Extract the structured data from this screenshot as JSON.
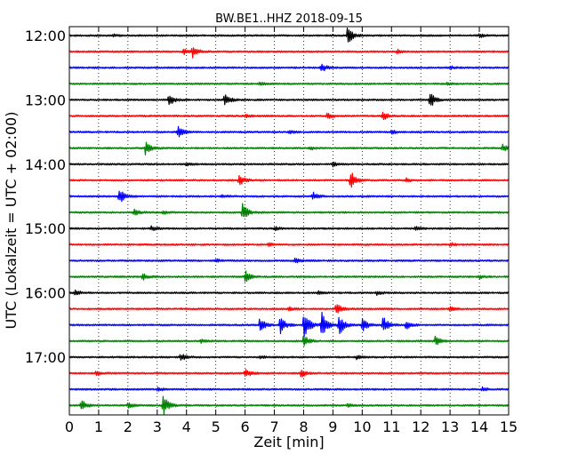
{
  "chart_data": {
    "type": "line",
    "title": "BW.BE1..HHZ 2018-09-15",
    "xlabel": "Zeit  [min]",
    "ylabel": "UTC (Lokalzeit = UTC + 02:00)",
    "xlim": [
      0,
      15
    ],
    "x_ticks": [
      0,
      1,
      2,
      3,
      4,
      5,
      6,
      7,
      8,
      9,
      10,
      11,
      12,
      13,
      14,
      15
    ],
    "x_tick_labels": [
      "0",
      "1",
      "2",
      "3",
      "4",
      "5",
      "6",
      "7",
      "8",
      "9",
      "10",
      "11",
      "12",
      "13",
      "14",
      "15"
    ],
    "y_tick_labels": [
      "12:00",
      "13:00",
      "14:00",
      "15:00",
      "16:00",
      "17:00"
    ],
    "y_tick_trace_index": [
      0,
      4,
      8,
      12,
      16,
      20
    ],
    "grid": "vertical dotted",
    "trace_colors": [
      "#000000",
      "#ff0000",
      "#0000ff",
      "#008000"
    ],
    "traces": [
      {
        "start": "12:00",
        "color": "#000000",
        "events": [
          {
            "t": 9.5,
            "amp": 11
          },
          {
            "t": 14.0,
            "amp": 2
          },
          {
            "t": 1.5,
            "amp": 1.5
          }
        ]
      },
      {
        "start": "12:15",
        "color": "#ff0000",
        "events": [
          {
            "t": 4.2,
            "amp": 7
          },
          {
            "t": 3.9,
            "amp": 4
          },
          {
            "t": 11.2,
            "amp": 2
          }
        ]
      },
      {
        "start": "12:30",
        "color": "#0000ff",
        "events": [
          {
            "t": 8.6,
            "amp": 6
          },
          {
            "t": 13.0,
            "amp": 2
          }
        ]
      },
      {
        "start": "12:45",
        "color": "#008000",
        "events": [
          {
            "t": 12.9,
            "amp": 1.5
          },
          {
            "t": 6.5,
            "amp": 1.5
          }
        ]
      },
      {
        "start": "13:00",
        "color": "#000000",
        "events": [
          {
            "t": 3.4,
            "amp": 7
          },
          {
            "t": 5.3,
            "amp": 8
          },
          {
            "t": 12.3,
            "amp": 11
          }
        ]
      },
      {
        "start": "13:15",
        "color": "#ff0000",
        "events": [
          {
            "t": 8.8,
            "amp": 4
          },
          {
            "t": 10.7,
            "amp": 5
          },
          {
            "t": 6.0,
            "amp": 2
          }
        ]
      },
      {
        "start": "13:30",
        "color": "#0000ff",
        "events": [
          {
            "t": 3.7,
            "amp": 7
          },
          {
            "t": 7.5,
            "amp": 2
          },
          {
            "t": 11.0,
            "amp": 2
          }
        ]
      },
      {
        "start": "13:45",
        "color": "#008000",
        "events": [
          {
            "t": 2.6,
            "amp": 8
          },
          {
            "t": 14.8,
            "amp": 4
          },
          {
            "t": 8.2,
            "amp": 2
          }
        ]
      },
      {
        "start": "14:00",
        "color": "#000000",
        "events": [
          {
            "t": 4.0,
            "amp": 2
          },
          {
            "t": 9.0,
            "amp": 2
          }
        ]
      },
      {
        "start": "14:15",
        "color": "#ff0000",
        "events": [
          {
            "t": 5.8,
            "amp": 7
          },
          {
            "t": 9.6,
            "amp": 11
          },
          {
            "t": 11.5,
            "amp": 2
          }
        ]
      },
      {
        "start": "14:30",
        "color": "#0000ff",
        "events": [
          {
            "t": 1.7,
            "amp": 9
          },
          {
            "t": 8.3,
            "amp": 5
          },
          {
            "t": 5.2,
            "amp": 2
          }
        ]
      },
      {
        "start": "14:45",
        "color": "#008000",
        "events": [
          {
            "t": 5.9,
            "amp": 12
          },
          {
            "t": 2.2,
            "amp": 4
          },
          {
            "t": 3.2,
            "amp": 2
          }
        ]
      },
      {
        "start": "15:00",
        "color": "#000000",
        "events": [
          {
            "t": 2.8,
            "amp": 3
          },
          {
            "t": 7.0,
            "amp": 2
          },
          {
            "t": 11.8,
            "amp": 2
          }
        ]
      },
      {
        "start": "15:15",
        "color": "#ff0000",
        "events": [
          {
            "t": 6.8,
            "amp": 2
          },
          {
            "t": 13.0,
            "amp": 2
          }
        ]
      },
      {
        "start": "15:30",
        "color": "#0000ff",
        "events": [
          {
            "t": 7.7,
            "amp": 3
          },
          {
            "t": 5.0,
            "amp": 2
          }
        ]
      },
      {
        "start": "15:45",
        "color": "#008000",
        "events": [
          {
            "t": 6.0,
            "amp": 8
          },
          {
            "t": 2.5,
            "amp": 4
          },
          {
            "t": 14.0,
            "amp": 2
          }
        ]
      },
      {
        "start": "16:00",
        "color": "#000000",
        "events": [
          {
            "t": 0.2,
            "amp": 4
          },
          {
            "t": 8.5,
            "amp": 2
          },
          {
            "t": 10.5,
            "amp": 2
          }
        ]
      },
      {
        "start": "16:15",
        "color": "#ff0000",
        "events": [
          {
            "t": 9.1,
            "amp": 7
          },
          {
            "t": 7.5,
            "amp": 2
          },
          {
            "t": 13.0,
            "amp": 2
          }
        ]
      },
      {
        "start": "16:30",
        "color": "#0000ff",
        "events": [
          {
            "t": 6.5,
            "amp": 9
          },
          {
            "t": 7.2,
            "amp": 10
          },
          {
            "t": 8.0,
            "amp": 22
          },
          {
            "t": 8.6,
            "amp": 18
          },
          {
            "t": 9.2,
            "amp": 14
          },
          {
            "t": 10.0,
            "amp": 9
          },
          {
            "t": 10.7,
            "amp": 12
          },
          {
            "t": 11.5,
            "amp": 5
          }
        ]
      },
      {
        "start": "16:45",
        "color": "#008000",
        "events": [
          {
            "t": 8.0,
            "amp": 8
          },
          {
            "t": 12.5,
            "amp": 7
          },
          {
            "t": 4.5,
            "amp": 2
          }
        ]
      },
      {
        "start": "17:00",
        "color": "#000000",
        "events": [
          {
            "t": 3.8,
            "amp": 4
          },
          {
            "t": 6.5,
            "amp": 2
          },
          {
            "t": 9.8,
            "amp": 2
          }
        ]
      },
      {
        "start": "17:15",
        "color": "#ff0000",
        "events": [
          {
            "t": 6.0,
            "amp": 6
          },
          {
            "t": 7.9,
            "amp": 5
          },
          {
            "t": 0.9,
            "amp": 3
          }
        ]
      },
      {
        "start": "17:30",
        "color": "#0000ff",
        "events": [
          {
            "t": 3.0,
            "amp": 2
          },
          {
            "t": 14.1,
            "amp": 2
          }
        ]
      },
      {
        "start": "17:45",
        "color": "#008000",
        "events": [
          {
            "t": 0.4,
            "amp": 7
          },
          {
            "t": 3.2,
            "amp": 12
          },
          {
            "t": 2.0,
            "amp": 3
          },
          {
            "t": 9.5,
            "amp": 2
          }
        ]
      }
    ]
  }
}
